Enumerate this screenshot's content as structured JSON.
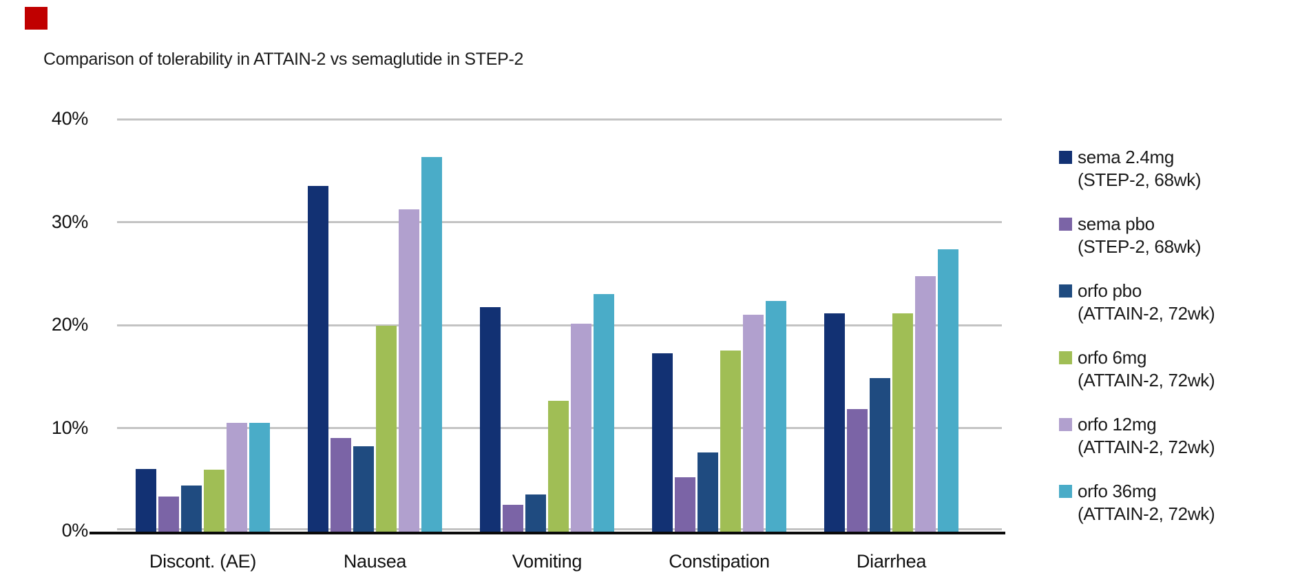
{
  "brand": {
    "mark_color": "#C00000"
  },
  "chart_data": {
    "type": "bar",
    "title": "Comparison of tolerability in ATTAIN-2 vs semaglutide in STEP-2",
    "categories": [
      "Discont. (AE)",
      "Nausea",
      "Vomiting",
      "Constipation",
      "Diarrhea"
    ],
    "series": [
      {
        "name": "sema 2.4mg",
        "trial": "(STEP-2, 68wk)",
        "color": "#123173",
        "values": [
          6.1,
          33.6,
          21.8,
          17.3,
          21.2
        ]
      },
      {
        "name": "sema pbo",
        "trial": "(STEP-2, 68wk)",
        "color": "#7B64A6",
        "values": [
          3.4,
          9.1,
          2.6,
          5.3,
          11.9
        ]
      },
      {
        "name": "orfo pbo",
        "trial": "(ATTAIN-2, 72wk)",
        "color": "#1F4B80",
        "values": [
          4.5,
          8.3,
          3.6,
          7.7,
          14.9
        ]
      },
      {
        "name": "orfo 6mg",
        "trial": "(ATTAIN-2, 72wk)",
        "color": "#A0BE55",
        "values": [
          6.0,
          20.0,
          12.7,
          17.6,
          21.2
        ]
      },
      {
        "name": "orfo 12mg",
        "trial": "(ATTAIN-2, 72wk)",
        "color": "#B1A0CE",
        "values": [
          10.6,
          31.3,
          20.2,
          21.1,
          24.8
        ]
      },
      {
        "name": "orfo 36mg",
        "trial": "(ATTAIN-2, 72wk)",
        "color": "#4AACC8",
        "values": [
          10.6,
          36.4,
          23.1,
          22.4,
          27.4
        ]
      }
    ],
    "y_ticks": [
      {
        "label": "40%",
        "value": 40
      },
      {
        "label": "30%",
        "value": 30
      },
      {
        "label": "20%",
        "value": 20
      },
      {
        "label": "10%",
        "value": 10
      },
      {
        "label": "0%",
        "value": 0
      }
    ],
    "ylim": [
      0,
      40
    ],
    "grid": "horizontal",
    "legend_position": "right",
    "colors": {
      "gridline": "#c3c3c3",
      "axis": "#0a0a0a",
      "text": "#1a1a1a"
    }
  }
}
